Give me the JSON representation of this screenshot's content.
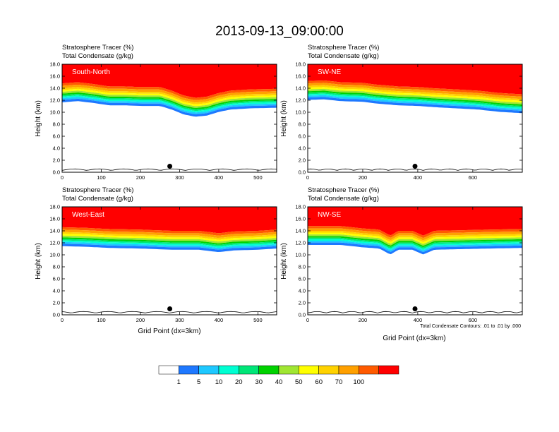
{
  "page_title": "2013-09-13_09:00:00",
  "colorbar": {
    "colors": [
      "#ffffff",
      "#1e78ff",
      "#1ec8ff",
      "#00ffd2",
      "#00e678",
      "#00d200",
      "#a0e632",
      "#ffff00",
      "#ffd200",
      "#ffa000",
      "#ff5a00",
      "#ff0000"
    ],
    "labels": [
      "1",
      "5",
      "10",
      "20",
      "30",
      "40",
      "50",
      "60",
      "70",
      "100"
    ]
  },
  "chart_data": [
    {
      "type": "heatmap",
      "panel_label": "South-North",
      "subtitle_1": "Stratosphere Tracer   (%)",
      "subtitle_2": "Total Condensate   (g/kg)",
      "xlabel": "",
      "ylabel": "Height (km)",
      "xlim": [
        0,
        548
      ],
      "ylim": [
        0,
        18
      ],
      "xticks": [
        "0",
        "100",
        "200",
        "300",
        "400",
        "500"
      ],
      "xtick_values": [
        0,
        100,
        200,
        300,
        400,
        500
      ],
      "yticks": [
        "0.0",
        "2.0",
        "4.0",
        "6.0",
        "8.0",
        "10.0",
        "12.0",
        "14.0",
        "16.0",
        "18.0"
      ],
      "tropopause_km": [
        [
          0,
          14.8
        ],
        [
          40,
          15.0
        ],
        [
          80,
          14.7
        ],
        [
          120,
          14.3
        ],
        [
          160,
          14.3
        ],
        [
          200,
          14.2
        ],
        [
          250,
          14.2
        ],
        [
          280,
          13.6
        ],
        [
          310,
          12.8
        ],
        [
          340,
          12.4
        ],
        [
          370,
          12.6
        ],
        [
          400,
          13.2
        ],
        [
          430,
          13.6
        ],
        [
          480,
          13.8
        ],
        [
          548,
          13.9
        ]
      ],
      "marker": {
        "x": 275,
        "y": 1.0
      }
    },
    {
      "type": "heatmap",
      "panel_label": "SW-NE",
      "subtitle_1": "Stratosphere Tracer   (%)",
      "subtitle_2": "Total Condensate   (g/kg)",
      "xlabel": "",
      "ylabel": "Height (km)",
      "xlim": [
        0,
        780
      ],
      "ylim": [
        0,
        18
      ],
      "xticks": [
        "0",
        "200",
        "400",
        "600"
      ],
      "xtick_values": [
        0,
        200,
        400,
        600
      ],
      "yticks": [
        "0.0",
        "2.0",
        "4.0",
        "6.0",
        "8.0",
        "10.0",
        "12.0",
        "14.0",
        "16.0",
        "18.0"
      ],
      "tropopause_km": [
        [
          0,
          15.2
        ],
        [
          60,
          15.3
        ],
        [
          120,
          15.0
        ],
        [
          200,
          14.9
        ],
        [
          250,
          14.6
        ],
        [
          330,
          14.3
        ],
        [
          400,
          14.2
        ],
        [
          460,
          14.0
        ],
        [
          540,
          13.8
        ],
        [
          620,
          13.6
        ],
        [
          700,
          13.2
        ],
        [
          780,
          13.0
        ]
      ],
      "marker": {
        "x": 390,
        "y": 1.0
      }
    },
    {
      "type": "heatmap",
      "panel_label": "West-East",
      "subtitle_1": "Stratosphere Tracer   (%)",
      "subtitle_2": "Total Condensate   (g/kg)",
      "xlabel": "Grid Point (dx=3km)",
      "ylabel": "Height (km)",
      "xlim": [
        0,
        548
      ],
      "ylim": [
        0,
        18
      ],
      "xticks": [
        "0",
        "100",
        "200",
        "300",
        "400",
        "500"
      ],
      "xtick_values": [
        0,
        100,
        200,
        300,
        400,
        500
      ],
      "yticks": [
        "0.0",
        "2.0",
        "4.0",
        "6.0",
        "8.0",
        "10.0",
        "12.0",
        "14.0",
        "16.0",
        "18.0"
      ],
      "tropopause_km": [
        [
          0,
          14.6
        ],
        [
          60,
          14.5
        ],
        [
          120,
          14.3
        ],
        [
          200,
          14.2
        ],
        [
          280,
          14.0
        ],
        [
          350,
          14.0
        ],
        [
          400,
          13.6
        ],
        [
          440,
          13.9
        ],
        [
          500,
          14.0
        ],
        [
          548,
          14.2
        ]
      ],
      "marker": {
        "x": 275,
        "y": 1.0
      }
    },
    {
      "type": "heatmap",
      "panel_label": "NW-SE",
      "subtitle_1": "Stratosphere Tracer   (%)",
      "subtitle_2": "Total Condensate   (g/kg)",
      "xlabel": "Grid Point (dx=3km)",
      "ylabel": "Height (km)",
      "xlim": [
        0,
        780
      ],
      "ylim": [
        0,
        18
      ],
      "xticks": [
        "0",
        "200",
        "400",
        "600"
      ],
      "xtick_values": [
        0,
        200,
        400,
        600
      ],
      "yticks": [
        "0.0",
        "2.0",
        "4.0",
        "6.0",
        "8.0",
        "10.0",
        "12.0",
        "14.0",
        "16.0",
        "18.0"
      ],
      "tropopause_km": [
        [
          0,
          14.8
        ],
        [
          120,
          14.8
        ],
        [
          200,
          14.4
        ],
        [
          260,
          14.2
        ],
        [
          300,
          13.2
        ],
        [
          330,
          14.0
        ],
        [
          380,
          14.0
        ],
        [
          420,
          13.2
        ],
        [
          460,
          14.0
        ],
        [
          560,
          14.1
        ],
        [
          660,
          14.2
        ],
        [
          780,
          14.3
        ]
      ],
      "marker": {
        "x": 390,
        "y": 1.0
      },
      "footnote": "Total Condensate Contours: .01 to .01 by .000"
    }
  ]
}
